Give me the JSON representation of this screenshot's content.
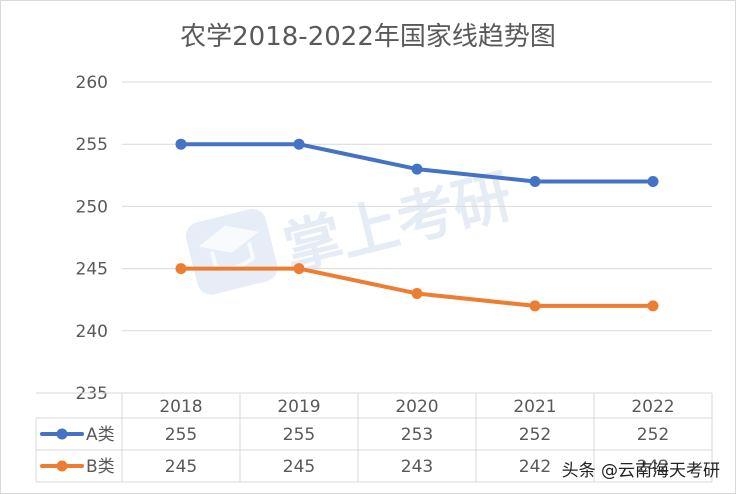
{
  "title": "农学2018-2022年国家线趋势图",
  "watermark": {
    "text": "掌上考研"
  },
  "credit": "头条 @云南海天考研",
  "chart_data": {
    "type": "line",
    "title": "农学2018-2022年国家线趋势图",
    "categories": [
      "2018",
      "2019",
      "2020",
      "2021",
      "2022"
    ],
    "series": [
      {
        "name": "A类",
        "color": "#4472C4",
        "values": [
          255,
          255,
          253,
          252,
          252
        ]
      },
      {
        "name": "B类",
        "color": "#ED7D31",
        "values": [
          245,
          245,
          243,
          242,
          242
        ]
      }
    ],
    "ylim": [
      235,
      260
    ],
    "yticks": [
      235,
      240,
      245,
      250,
      255,
      260
    ],
    "grid": true,
    "legend": "data-table",
    "data_table": true
  }
}
